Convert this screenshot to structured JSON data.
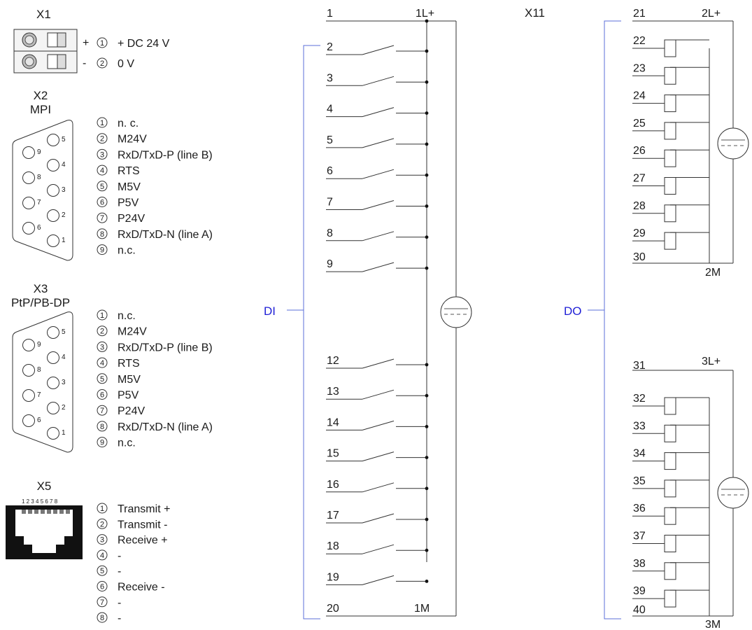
{
  "x1": {
    "title": "X1",
    "pins": [
      {
        "sign": "+",
        "num": "1",
        "label": "+ DC 24 V"
      },
      {
        "sign": "-",
        "num": "2",
        "label": "0 V"
      }
    ]
  },
  "x2": {
    "title": "X2",
    "subtitle": "MPI",
    "pin_numbers": [
      "5",
      "9",
      "4",
      "8",
      "3",
      "7",
      "2",
      "6",
      "1"
    ],
    "pins": [
      {
        "num": "1",
        "label": "n. c."
      },
      {
        "num": "2",
        "label": "M24V"
      },
      {
        "num": "3",
        "label": "RxD/TxD-P (line B)"
      },
      {
        "num": "4",
        "label": "RTS"
      },
      {
        "num": "5",
        "label": "M5V"
      },
      {
        "num": "6",
        "label": "P5V"
      },
      {
        "num": "7",
        "label": "P24V"
      },
      {
        "num": "8",
        "label": "RxD/TxD-N (line A)"
      },
      {
        "num": "9",
        "label": "n.c."
      }
    ]
  },
  "x3": {
    "title": "X3",
    "subtitle": "PtP/PB-DP",
    "pin_numbers": [
      "5",
      "9",
      "4",
      "8",
      "3",
      "7",
      "2",
      "6",
      "1"
    ],
    "pins": [
      {
        "num": "1",
        "label": "n.c."
      },
      {
        "num": "2",
        "label": "M24V"
      },
      {
        "num": "3",
        "label": "RxD/TxD-P (line B)"
      },
      {
        "num": "4",
        "label": "RTS"
      },
      {
        "num": "5",
        "label": "M5V"
      },
      {
        "num": "6",
        "label": "P5V"
      },
      {
        "num": "7",
        "label": "P24V"
      },
      {
        "num": "8",
        "label": "RxD/TxD-N (line A)"
      },
      {
        "num": "9",
        "label": "n.c."
      }
    ]
  },
  "x5": {
    "title": "X5",
    "jack_label": "1 2 3 4 5 6 7 8",
    "pins": [
      {
        "num": "1",
        "label": "Transmit +"
      },
      {
        "num": "2",
        "label": "Transmit -"
      },
      {
        "num": "3",
        "label": "Receive +"
      },
      {
        "num": "4",
        "label": "-"
      },
      {
        "num": "5",
        "label": "-"
      },
      {
        "num": "6",
        "label": "Receive -"
      },
      {
        "num": "7",
        "label": "-"
      },
      {
        "num": "8",
        "label": "-"
      }
    ]
  },
  "x11": {
    "title": "X11",
    "di_label": "DI",
    "do_label": "DO",
    "di_top_pin": "1",
    "di_top_supply": "1L+",
    "di_bottom_pin": "20",
    "di_bottom_supply": "1M",
    "di_inputs_a": [
      "2",
      "3",
      "4",
      "5",
      "6",
      "7",
      "8",
      "9"
    ],
    "di_inputs_b": [
      "12",
      "13",
      "14",
      "15",
      "16",
      "17",
      "18",
      "19"
    ],
    "do_group1_top": "21",
    "do_group1_supply": "2L+",
    "do_group1_outputs": [
      "22",
      "23",
      "24",
      "25",
      "26",
      "27",
      "28",
      "29"
    ],
    "do_group1_bottom": "30",
    "do_group1_ground": "2M",
    "do_group2_top": "31",
    "do_group2_supply": "3L+",
    "do_group2_outputs": [
      "32",
      "33",
      "34",
      "35",
      "36",
      "37",
      "38",
      "39"
    ],
    "do_group2_bottom": "40",
    "do_group2_ground": "3M"
  },
  "colors": {
    "accent": "#1f1fd6",
    "bracket": "#5b6fd8",
    "line": "#333333"
  }
}
